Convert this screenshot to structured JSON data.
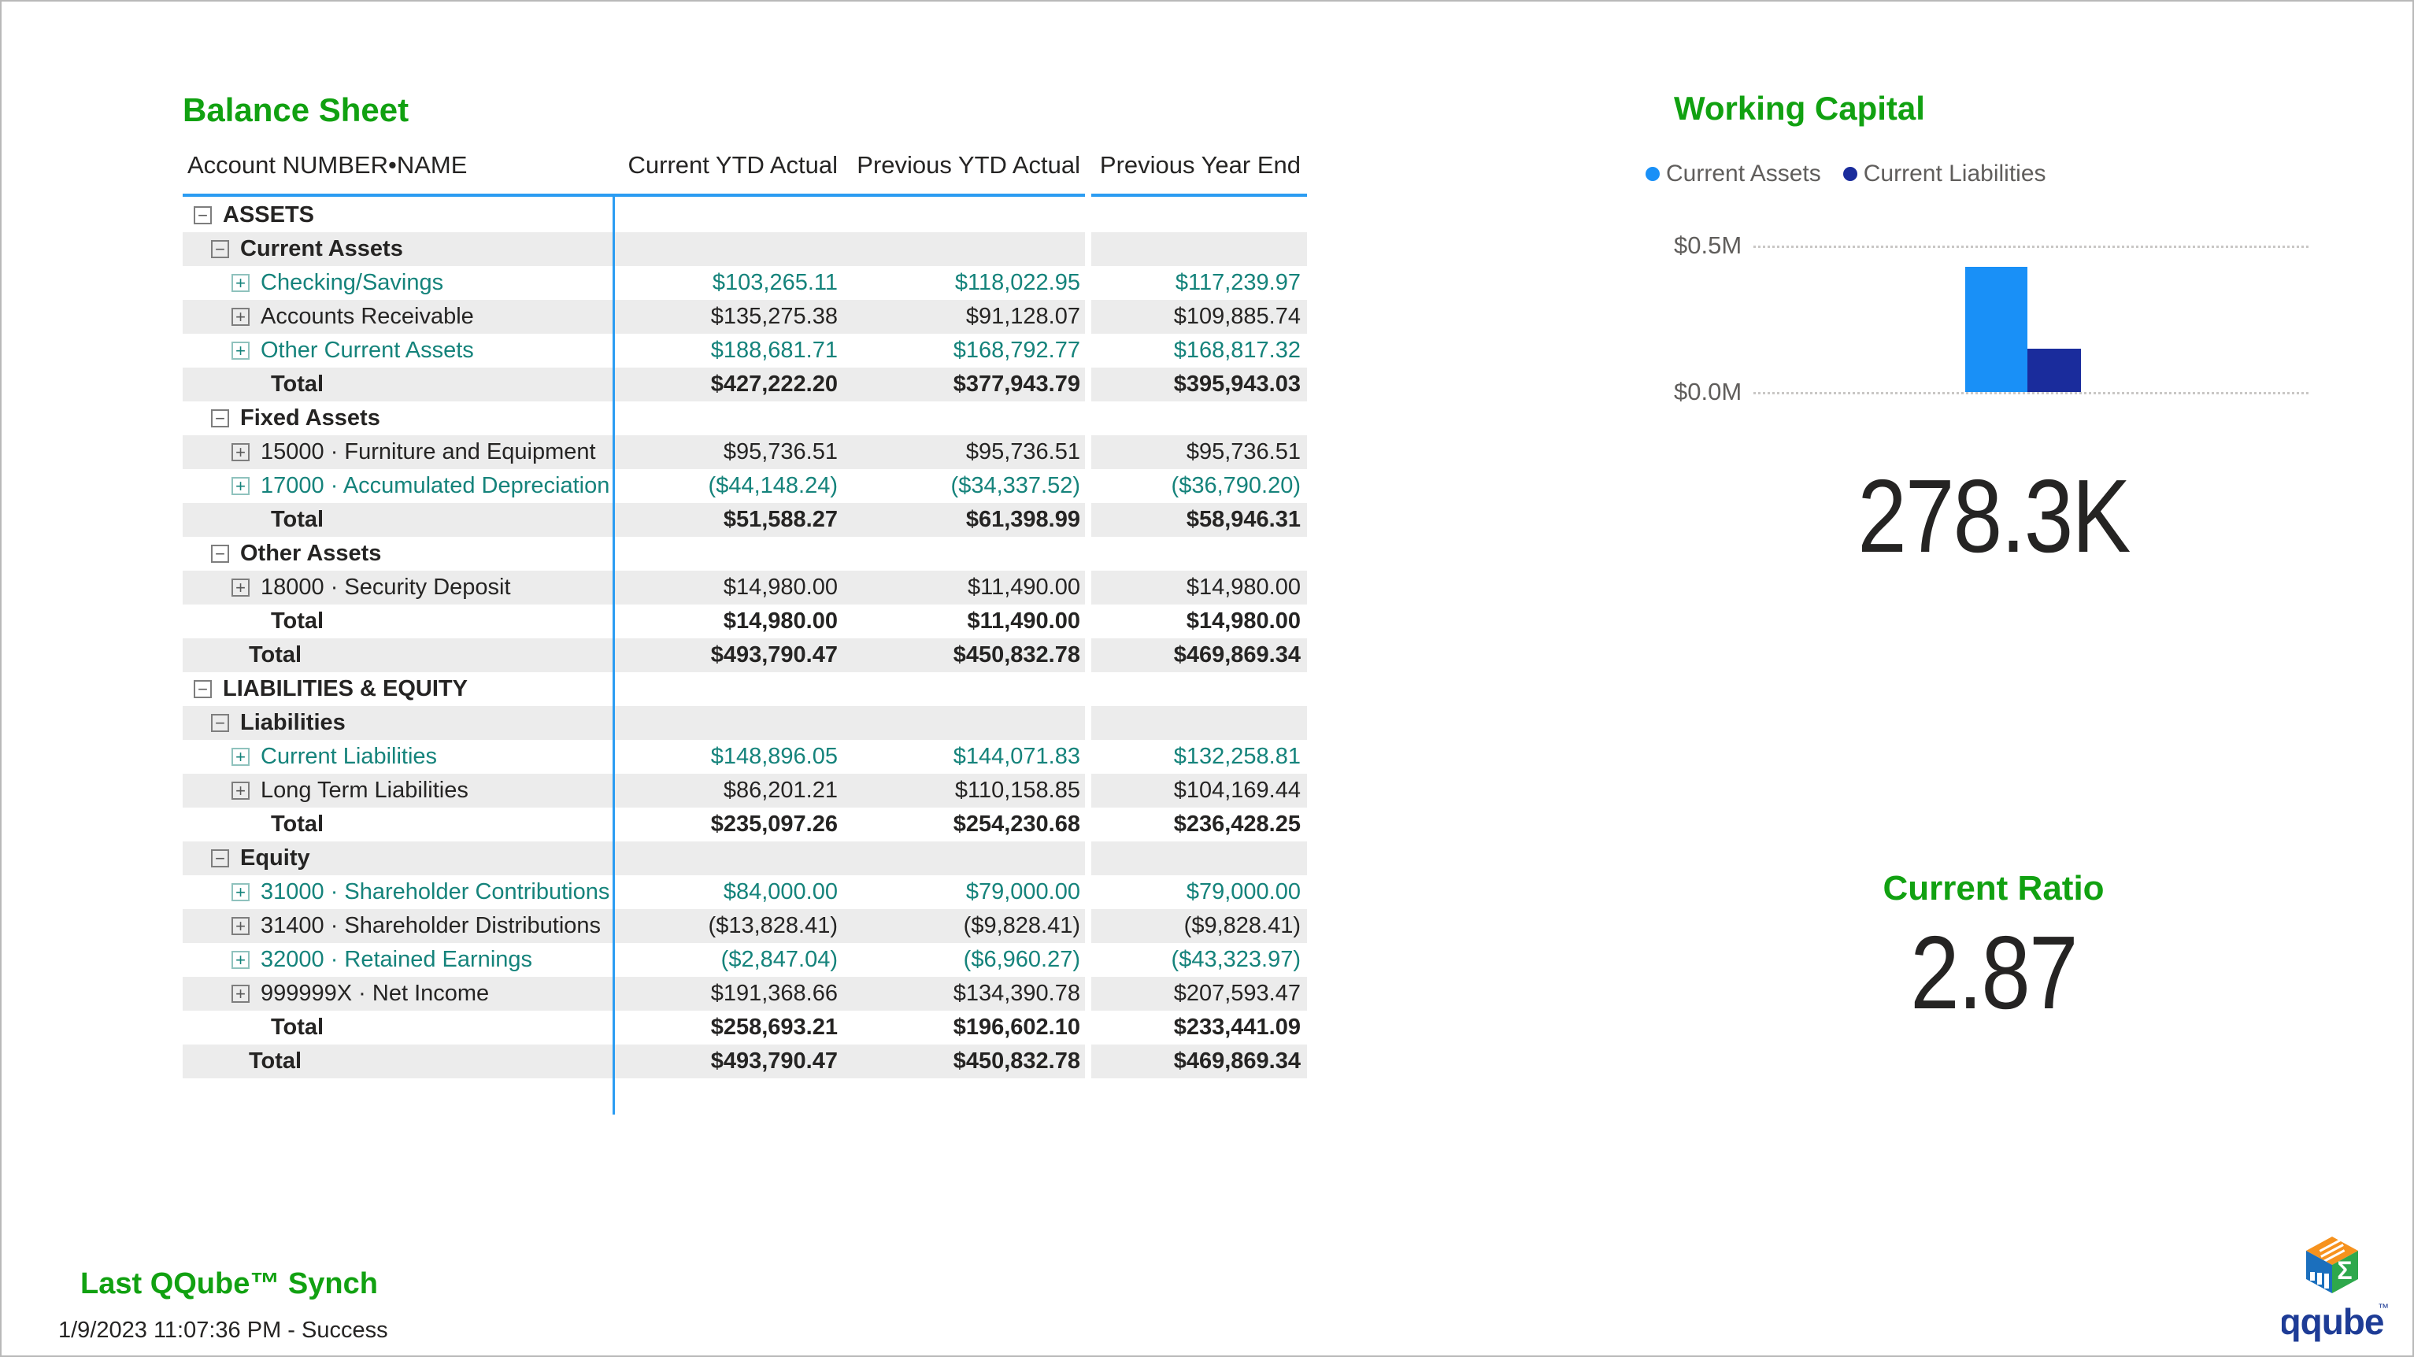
{
  "balance_sheet": {
    "title": "Balance Sheet",
    "columns": [
      "Account NUMBER•NAME",
      "Current YTD Actual",
      "Previous YTD Actual",
      "Previous Year End"
    ],
    "rows": [
      {
        "type": "group",
        "level": 1,
        "name": "ASSETS",
        "accent": false,
        "values": [
          "",
          "",
          ""
        ]
      },
      {
        "type": "group",
        "level": 2,
        "name": "Current Assets",
        "accent": false,
        "values": [
          "",
          "",
          ""
        ]
      },
      {
        "type": "leaf",
        "level": 3,
        "name": "Checking/Savings",
        "accent": true,
        "values": [
          "$103,265.11",
          "$118,022.95",
          "$117,239.97"
        ]
      },
      {
        "type": "leaf",
        "level": 3,
        "name": "Accounts Receivable",
        "accent": false,
        "values": [
          "$135,275.38",
          "$91,128.07",
          "$109,885.74"
        ]
      },
      {
        "type": "leaf",
        "level": 3,
        "name": "Other Current Assets",
        "accent": true,
        "values": [
          "$188,681.71",
          "$168,792.77",
          "$168,817.32"
        ]
      },
      {
        "type": "total",
        "level": 3,
        "name": "Total",
        "accent": false,
        "values": [
          "$427,222.20",
          "$377,943.79",
          "$395,943.03"
        ]
      },
      {
        "type": "group",
        "level": 2,
        "name": "Fixed Assets",
        "accent": false,
        "values": [
          "",
          "",
          ""
        ]
      },
      {
        "type": "leaf",
        "level": 3,
        "name": "15000 · Furniture and Equipment",
        "accent": false,
        "values": [
          "$95,736.51",
          "$95,736.51",
          "$95,736.51"
        ]
      },
      {
        "type": "leaf",
        "level": 3,
        "name": "17000 · Accumulated Depreciation",
        "accent": true,
        "values": [
          "($44,148.24)",
          "($34,337.52)",
          "($36,790.20)"
        ]
      },
      {
        "type": "total",
        "level": 3,
        "name": "Total",
        "accent": false,
        "values": [
          "$51,588.27",
          "$61,398.99",
          "$58,946.31"
        ]
      },
      {
        "type": "group",
        "level": 2,
        "name": "Other Assets",
        "accent": false,
        "values": [
          "",
          "",
          ""
        ]
      },
      {
        "type": "leaf",
        "level": 3,
        "name": "18000 · Security Deposit",
        "accent": false,
        "values": [
          "$14,980.00",
          "$11,490.00",
          "$14,980.00"
        ]
      },
      {
        "type": "total",
        "level": 3,
        "name": "Total",
        "accent": false,
        "values": [
          "$14,980.00",
          "$11,490.00",
          "$14,980.00"
        ]
      },
      {
        "type": "total",
        "level": 2,
        "name": "Total",
        "accent": false,
        "values": [
          "$493,790.47",
          "$450,832.78",
          "$469,869.34"
        ]
      },
      {
        "type": "group",
        "level": 1,
        "name": "LIABILITIES & EQUITY",
        "accent": false,
        "values": [
          "",
          "",
          ""
        ]
      },
      {
        "type": "group",
        "level": 2,
        "name": "Liabilities",
        "accent": false,
        "values": [
          "",
          "",
          ""
        ]
      },
      {
        "type": "leaf",
        "level": 3,
        "name": "Current Liabilities",
        "accent": true,
        "values": [
          "$148,896.05",
          "$144,071.83",
          "$132,258.81"
        ]
      },
      {
        "type": "leaf",
        "level": 3,
        "name": "Long Term Liabilities",
        "accent": false,
        "values": [
          "$86,201.21",
          "$110,158.85",
          "$104,169.44"
        ]
      },
      {
        "type": "total",
        "level": 3,
        "name": "Total",
        "accent": false,
        "values": [
          "$235,097.26",
          "$254,230.68",
          "$236,428.25"
        ]
      },
      {
        "type": "group",
        "level": 2,
        "name": "Equity",
        "accent": false,
        "values": [
          "",
          "",
          ""
        ]
      },
      {
        "type": "leaf",
        "level": 3,
        "name": "31000 · Shareholder Contributions",
        "accent": true,
        "values": [
          "$84,000.00",
          "$79,000.00",
          "$79,000.00"
        ]
      },
      {
        "type": "leaf",
        "level": 3,
        "name": "31400 · Shareholder Distributions",
        "accent": false,
        "values": [
          "($13,828.41)",
          "($9,828.41)",
          "($9,828.41)"
        ]
      },
      {
        "type": "leaf",
        "level": 3,
        "name": "32000 · Retained Earnings",
        "accent": true,
        "values": [
          "($2,847.04)",
          "($6,960.27)",
          "($43,323.97)"
        ]
      },
      {
        "type": "leaf",
        "level": 3,
        "name": "999999X · Net Income",
        "accent": false,
        "values": [
          "$191,368.66",
          "$134,390.78",
          "$207,593.47"
        ]
      },
      {
        "type": "total",
        "level": 3,
        "name": "Total",
        "accent": false,
        "values": [
          "$258,693.21",
          "$196,602.10",
          "$233,441.09"
        ]
      },
      {
        "type": "total",
        "level": 2,
        "name": "Total",
        "accent": false,
        "values": [
          "$493,790.47",
          "$450,832.78",
          "$469,869.34"
        ]
      }
    ]
  },
  "chart_data": {
    "type": "bar",
    "title": "Working Capital",
    "series": [
      {
        "name": "Current Assets",
        "values": [
          427222.2
        ],
        "color": "#1990F7"
      },
      {
        "name": "Current Liabilities",
        "values": [
          148896.05
        ],
        "color": "#1A2C9C"
      }
    ],
    "ylim": [
      0,
      500000
    ],
    "ytick_labels": [
      "$0.0M",
      "$0.5M"
    ],
    "legend_position": "top",
    "grid": "dotted-horizontal"
  },
  "working_capital": {
    "value": "278.3K"
  },
  "current_ratio": {
    "label": "Current Ratio",
    "value": "2.87"
  },
  "sync": {
    "title": "Last QQube™ Synch",
    "status": "1/9/2023 11:07:36 PM - Success"
  },
  "logo": {
    "text": "qqube",
    "tm": "™",
    "sigma": "Σ"
  },
  "colors": {
    "title_green": "#11A111",
    "link_teal": "#15837B",
    "divider_blue": "#2B9CF2",
    "row_alt_gray": "#ECECEC",
    "text_dark": "#252423",
    "muted_gray": "#605E5C",
    "bar_current_assets": "#1990F7",
    "bar_current_liabilities": "#1A2C9C",
    "logo_orange": "#F6921E",
    "logo_blue": "#1B6FBD",
    "logo_green": "#2EA84C",
    "logo_navy": "#1E3C96"
  }
}
